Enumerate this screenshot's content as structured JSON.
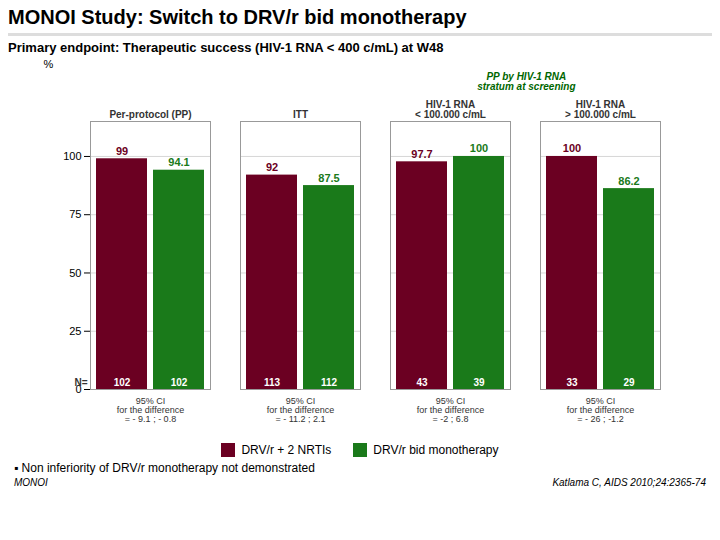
{
  "chart_data": {
    "type": "bar",
    "title": "MONOI Study: Switch to DRV/r bid monotherapy",
    "subtitle": "Primary endpoint: Therapeutic success (HIV-1 RNA < 400 c/mL) at W48",
    "categories": [
      "Per-protocol (PP)",
      "ITT",
      "HIV-1 RNA\n< 100.000 c/mL",
      "HIV-1 RNA\n> 100.000 c/mL"
    ],
    "group_header": {
      "text": "PP by HIV-1 RNA\nstratum at screening",
      "categories": [
        "HIV-1 RNA\n< 100.000 c/mL",
        "HIV-1 RNA\n> 100.000 c/mL"
      ]
    },
    "category_notes": [
      "95% CI\nfor the difference\n= - 9.1 ; - 0.8",
      "95% CI\nfor the difference\n= - 11.2 ; 2.1",
      "95% CI\nfor the difference\n= -2 ; 6.8",
      "95% CI\nfor the difference\n= - 26 ; -1.2"
    ],
    "series": [
      {
        "name": "DRV/r + 2 NRTIs",
        "color": "#6b0022",
        "values": [
          99,
          92,
          97.7,
          100
        ],
        "n": [
          102,
          113,
          43,
          33
        ]
      },
      {
        "name": "DRV/r bid monotherapy",
        "color": "#1a7a1a",
        "values": [
          94.1,
          87.5,
          100,
          86.2
        ],
        "n": [
          102,
          112,
          39,
          29
        ]
      }
    ],
    "n_label": "N=",
    "y_label": "%",
    "ylim": [
      0,
      115
    ],
    "yticks": [
      0,
      25,
      50,
      75,
      100
    ],
    "grid": true,
    "data_labels": true,
    "legend": "bottom",
    "footnote": "▪ Non inferiority of DRV/r monotherapy not demonstrated",
    "citation": "Katlama C, AIDS 2010;24:2365-74",
    "source_label": "MONOI"
  }
}
